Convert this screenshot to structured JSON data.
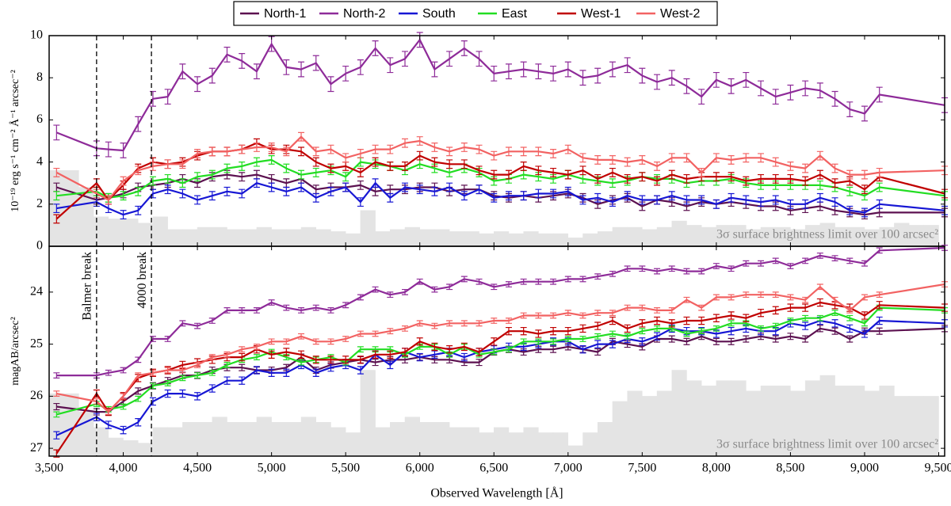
{
  "chart_data": {
    "type": "line",
    "xlabel": "Observed Wavelength [Å]",
    "xlim": [
      3500,
      9540
    ],
    "xticks": [
      {
        "value": 3500,
        "label": "3,500"
      },
      {
        "value": 4000,
        "label": "4,000"
      },
      {
        "value": 4500,
        "label": "4,500"
      },
      {
        "value": 5000,
        "label": "5,000"
      },
      {
        "value": 5500,
        "label": "5,500"
      },
      {
        "value": 6000,
        "label": "6,000"
      },
      {
        "value": 6500,
        "label": "6,500"
      },
      {
        "value": 7000,
        "label": "7,000"
      },
      {
        "value": 7500,
        "label": "7,500"
      },
      {
        "value": 8000,
        "label": "8,000"
      },
      {
        "value": 8500,
        "label": "8,500"
      },
      {
        "value": 9000,
        "label": "9,000"
      },
      {
        "value": 9500,
        "label": "9,500"
      }
    ],
    "x": [
      3550,
      3820,
      3900,
      4000,
      4100,
      4200,
      4300,
      4400,
      4500,
      4600,
      4700,
      4800,
      4900,
      5000,
      5100,
      5200,
      5300,
      5400,
      5500,
      5600,
      5700,
      5800,
      5900,
      6000,
      6100,
      6200,
      6300,
      6400,
      6500,
      6600,
      6700,
      6800,
      6900,
      7000,
      7100,
      7200,
      7300,
      7400,
      7500,
      7600,
      7700,
      7800,
      7900,
      8000,
      8100,
      8200,
      8300,
      8400,
      8500,
      8600,
      8700,
      8800,
      8900,
      9000,
      9100,
      9540
    ],
    "series": [
      {
        "name": "North-1",
        "color": "#5c1150"
      },
      {
        "name": "North-2",
        "color": "#8e2b99"
      },
      {
        "name": "South",
        "color": "#1717d4"
      },
      {
        "name": "East",
        "color": "#22dd22"
      },
      {
        "name": "West-1",
        "color": "#c00000"
      },
      {
        "name": "West-2",
        "color": "#f26262"
      }
    ],
    "vlines": [
      {
        "x": 3820,
        "label": "Balmer break"
      },
      {
        "x": 4190,
        "label": "4000 break"
      }
    ],
    "bins": [
      3500,
      3600,
      3700,
      3800,
      3900,
      4000,
      4100,
      4200,
      4300,
      4400,
      4500,
      4600,
      4700,
      4800,
      4900,
      5000,
      5100,
      5200,
      5300,
      5400,
      5500,
      5600,
      5700,
      5800,
      5900,
      6000,
      6100,
      6200,
      6300,
      6400,
      6500,
      6600,
      6700,
      6800,
      6900,
      7000,
      7100,
      7200,
      7300,
      7400,
      7500,
      7600,
      7700,
      7800,
      7900,
      8000,
      8100,
      8200,
      8300,
      8400,
      8500,
      8600,
      8700,
      8800,
      8900,
      9000,
      9100,
      9200,
      9300,
      9400,
      9500
    ],
    "panels": [
      {
        "ylabel": "10⁻¹⁹ erg s⁻¹ cm⁻² Å⁻¹ arcsec⁻²",
        "ylim": [
          0,
          10
        ],
        "yticks": [
          0,
          2,
          4,
          6,
          8,
          10
        ],
        "annotation": "3σ surface brightness limit over 100 arcsec²",
        "limit": [
          3.6,
          3.6,
          2.8,
          1.4,
          1.3,
          1.3,
          1.1,
          1.4,
          0.8,
          0.8,
          0.9,
          0.9,
          0.8,
          0.8,
          0.9,
          0.8,
          0.8,
          0.9,
          0.8,
          0.7,
          0.6,
          1.7,
          0.7,
          0.8,
          0.9,
          0.8,
          0.8,
          0.7,
          0.7,
          0.6,
          0.7,
          0.6,
          0.7,
          0.6,
          0.6,
          0.4,
          0.6,
          0.7,
          0.9,
          0.9,
          0.8,
          0.9,
          1.2,
          1.0,
          0.9,
          1.0,
          1.0,
          0.8,
          0.9,
          0.9,
          0.8,
          1.0,
          1.1,
          0.9,
          0.9,
          0.8,
          0.9,
          1.1,
          1.0,
          1.0
        ],
        "series": [
          {
            "error": 0.2,
            "values": [
              2.8,
              2.2,
              2.3,
              2.5,
              2.8,
              2.9,
              3.0,
              3.2,
              3.0,
              3.3,
              3.4,
              3.3,
              3.4,
              3.2,
              3.0,
              3.2,
              2.7,
              2.8,
              2.8,
              2.9,
              2.6,
              2.7,
              2.7,
              2.8,
              2.8,
              2.6,
              2.7,
              2.7,
              2.4,
              2.3,
              2.4,
              2.3,
              2.4,
              2.5,
              2.3,
              2.0,
              2.2,
              2.3,
              1.9,
              2.2,
              2.1,
              1.9,
              2.1,
              2.0,
              2.1,
              2.0,
              1.9,
              1.9,
              1.7,
              1.8,
              1.9,
              1.7,
              1.6,
              1.5,
              1.6,
              1.6
            ]
          },
          {
            "error": 0.35,
            "values": [
              5.4,
              4.65,
              4.6,
              4.55,
              5.8,
              7.0,
              7.1,
              8.3,
              7.7,
              8.1,
              9.1,
              8.8,
              8.3,
              9.6,
              8.5,
              8.4,
              8.7,
              7.7,
              8.2,
              8.5,
              9.4,
              8.6,
              8.9,
              9.8,
              8.4,
              8.9,
              9.4,
              8.9,
              8.2,
              8.3,
              8.4,
              8.3,
              8.2,
              8.4,
              8.0,
              8.1,
              8.4,
              8.6,
              8.1,
              7.8,
              8.0,
              7.6,
              7.1,
              7.9,
              7.6,
              7.9,
              7.5,
              7.1,
              7.3,
              7.5,
              7.4,
              7.0,
              6.5,
              6.3,
              7.2,
              6.7
            ]
          },
          {
            "error": 0.2,
            "values": [
              1.8,
              2.1,
              1.8,
              1.5,
              1.7,
              2.5,
              2.7,
              2.5,
              2.2,
              2.4,
              2.6,
              2.5,
              3.0,
              2.8,
              2.6,
              2.8,
              2.3,
              2.6,
              2.8,
              2.1,
              3.0,
              2.3,
              2.8,
              2.7,
              2.6,
              2.8,
              2.4,
              2.7,
              2.3,
              2.4,
              2.4,
              2.5,
              2.5,
              2.6,
              2.2,
              2.3,
              2.1,
              2.4,
              2.2,
              2.2,
              2.4,
              2.2,
              2.2,
              2.0,
              2.3,
              2.2,
              2.1,
              2.2,
              2.0,
              2.0,
              2.3,
              2.1,
              1.7,
              1.6,
              2.0,
              1.7
            ]
          },
          {
            "error": 0.2,
            "values": [
              2.4,
              2.6,
              2.3,
              2.4,
              2.6,
              3.1,
              3.2,
              3.0,
              3.3,
              3.4,
              3.7,
              3.8,
              4.0,
              4.1,
              3.7,
              3.4,
              3.5,
              3.6,
              3.3,
              4.0,
              3.9,
              3.8,
              3.6,
              3.9,
              3.7,
              3.5,
              3.7,
              3.5,
              3.1,
              3.2,
              3.4,
              3.3,
              3.2,
              3.4,
              3.2,
              3.1,
              3.0,
              3.1,
              3.3,
              3.2,
              3.2,
              3.0,
              3.1,
              3.1,
              3.2,
              3.0,
              2.9,
              2.9,
              2.9,
              2.9,
              2.9,
              2.8,
              2.6,
              2.4,
              2.8,
              2.4
            ]
          },
          {
            "error": 0.2,
            "values": [
              1.3,
              3.0,
              2.2,
              2.9,
              3.7,
              4.0,
              3.9,
              4.0,
              4.3,
              4.5,
              4.5,
              4.6,
              4.9,
              4.6,
              4.6,
              4.5,
              4.0,
              3.7,
              3.8,
              3.5,
              4.0,
              3.8,
              3.8,
              4.3,
              4.0,
              3.9,
              3.9,
              3.6,
              3.4,
              3.4,
              3.8,
              3.6,
              3.5,
              3.4,
              3.6,
              3.2,
              3.5,
              3.2,
              3.3,
              3.1,
              3.4,
              3.2,
              3.3,
              3.3,
              3.3,
              3.1,
              3.2,
              3.2,
              3.2,
              3.1,
              3.4,
              3.0,
              3.1,
              2.7,
              3.3,
              2.5
            ]
          },
          {
            "error": 0.2,
            "values": [
              3.5,
              2.5,
              2.2,
              3.1,
              3.6,
              3.8,
              3.9,
              3.9,
              4.4,
              4.5,
              4.5,
              4.6,
              4.7,
              4.7,
              4.5,
              5.2,
              4.5,
              4.6,
              4.2,
              4.4,
              4.6,
              4.6,
              4.9,
              5.0,
              4.7,
              4.5,
              4.7,
              4.6,
              4.3,
              4.5,
              4.5,
              4.5,
              4.4,
              4.6,
              4.2,
              4.1,
              4.1,
              4.0,
              4.1,
              3.8,
              4.2,
              4.2,
              3.5,
              4.2,
              4.1,
              4.2,
              4.2,
              4.0,
              3.8,
              3.7,
              4.3,
              3.7,
              3.4,
              3.4,
              3.5,
              3.6
            ]
          }
        ]
      },
      {
        "ylabel": "magAB/arcsec²",
        "ylim": [
          27.15,
          23.12
        ],
        "yticks": [
          24,
          25,
          26,
          27
        ],
        "annotation": "3σ surface brightness limit over 100 arcsec²",
        "limit": [
          25.95,
          25.95,
          26.3,
          26.6,
          26.8,
          26.85,
          26.9,
          26.6,
          26.6,
          26.5,
          26.5,
          26.4,
          26.5,
          26.5,
          26.4,
          26.5,
          26.5,
          26.4,
          26.5,
          26.6,
          26.7,
          25.5,
          26.6,
          26.5,
          26.4,
          26.5,
          26.5,
          26.6,
          26.6,
          26.7,
          26.6,
          26.7,
          26.6,
          26.7,
          26.7,
          26.95,
          26.7,
          26.5,
          26.1,
          25.9,
          26.0,
          25.9,
          25.5,
          25.7,
          25.8,
          25.7,
          25.7,
          25.9,
          25.8,
          25.8,
          25.9,
          25.7,
          25.6,
          25.8,
          25.8,
          25.9,
          25.8,
          26.0,
          26.0,
          26.0
        ],
        "series": [
          {
            "error": 0.06,
            "values": [
              26.2,
              26.3,
              26.3,
              26.1,
              25.9,
              25.8,
              25.7,
              25.6,
              25.6,
              25.5,
              25.45,
              25.45,
              25.5,
              25.5,
              25.45,
              25.25,
              25.5,
              25.4,
              25.35,
              25.3,
              25.35,
              25.3,
              25.3,
              25.25,
              25.3,
              25.3,
              25.35,
              25.35,
              25.15,
              25.1,
              25.15,
              25.1,
              25.1,
              25.05,
              25.1,
              25.15,
              24.95,
              25.0,
              25.05,
              24.9,
              24.9,
              24.95,
              24.85,
              24.95,
              24.95,
              24.9,
              24.85,
              24.9,
              24.85,
              24.9,
              24.7,
              24.75,
              24.9,
              24.75,
              24.75,
              24.7
            ]
          },
          {
            "error": 0.05,
            "values": [
              25.6,
              25.6,
              25.55,
              25.5,
              25.3,
              24.9,
              24.9,
              24.6,
              24.65,
              24.55,
              24.35,
              24.35,
              24.35,
              24.2,
              24.3,
              24.35,
              24.3,
              24.35,
              24.25,
              24.1,
              23.95,
              24.05,
              24.0,
              23.8,
              23.95,
              23.9,
              23.75,
              23.8,
              23.9,
              23.85,
              23.8,
              23.8,
              23.8,
              23.75,
              23.75,
              23.7,
              23.65,
              23.55,
              23.55,
              23.6,
              23.55,
              23.6,
              23.6,
              23.5,
              23.55,
              23.45,
              23.45,
              23.4,
              23.5,
              23.4,
              23.3,
              23.35,
              23.4,
              23.45,
              23.2,
              23.15
            ]
          },
          {
            "error": 0.07,
            "values": [
              26.75,
              26.4,
              26.55,
              26.65,
              26.5,
              26.1,
              25.95,
              25.95,
              26.0,
              25.85,
              25.7,
              25.7,
              25.5,
              25.55,
              25.55,
              25.4,
              25.55,
              25.45,
              25.4,
              25.5,
              25.2,
              25.4,
              25.15,
              25.25,
              25.2,
              25.15,
              25.25,
              25.15,
              25.1,
              25.05,
              25.05,
              25.0,
              24.95,
              24.95,
              25.1,
              25.0,
              25.0,
              24.9,
              24.95,
              24.85,
              24.7,
              24.75,
              24.75,
              24.8,
              24.75,
              24.7,
              24.75,
              24.75,
              24.6,
              24.65,
              24.55,
              24.6,
              24.7,
              24.8,
              24.55,
              24.6
            ]
          },
          {
            "error": 0.05,
            "values": [
              26.35,
              26.15,
              26.25,
              26.2,
              26.05,
              25.8,
              25.75,
              25.65,
              25.6,
              25.55,
              25.4,
              25.3,
              25.25,
              25.15,
              25.25,
              25.35,
              25.3,
              25.25,
              25.35,
              25.1,
              25.1,
              25.1,
              25.2,
              25.05,
              25.05,
              25.2,
              25.05,
              25.2,
              25.15,
              25.1,
              24.95,
              24.95,
              24.95,
              24.9,
              24.9,
              24.85,
              24.8,
              24.85,
              24.75,
              24.7,
              24.7,
              24.8,
              24.75,
              24.7,
              24.6,
              24.6,
              24.7,
              24.65,
              24.55,
              24.5,
              24.5,
              24.4,
              24.5,
              24.6,
              24.3,
              24.35
            ]
          },
          {
            "error": 0.07,
            "values": [
              27.1,
              25.95,
              26.3,
              26.0,
              25.65,
              25.55,
              25.5,
              25.4,
              25.35,
              25.3,
              25.25,
              25.25,
              25.1,
              25.2,
              25.15,
              25.2,
              25.3,
              25.3,
              25.3,
              25.3,
              25.2,
              25.2,
              25.15,
              24.95,
              25.05,
              25.1,
              25.05,
              25.15,
              24.95,
              24.75,
              24.75,
              24.8,
              24.75,
              24.75,
              24.7,
              24.65,
              24.55,
              24.7,
              24.6,
              24.55,
              24.6,
              24.55,
              24.55,
              24.5,
              24.45,
              24.5,
              24.4,
              24.35,
              24.3,
              24.3,
              24.2,
              24.25,
              24.3,
              24.45,
              24.25,
              24.3
            ]
          },
          {
            "error": 0.05,
            "values": [
              25.95,
              26.1,
              26.3,
              26.0,
              25.6,
              25.55,
              25.5,
              25.5,
              25.4,
              25.25,
              25.2,
              25.1,
              25.05,
              24.95,
              24.95,
              24.85,
              24.95,
              24.95,
              24.9,
              24.8,
              24.8,
              24.75,
              24.7,
              24.6,
              24.65,
              24.6,
              24.6,
              24.6,
              24.55,
              24.55,
              24.45,
              24.45,
              24.45,
              24.4,
              24.45,
              24.4,
              24.4,
              24.3,
              24.3,
              24.35,
              24.35,
              24.15,
              24.3,
              24.1,
              24.1,
              24.05,
              24.05,
              24.05,
              24.1,
              24.15,
              23.9,
              24.15,
              24.35,
              24.1,
              24.05,
              23.85
            ]
          }
        ]
      }
    ]
  }
}
